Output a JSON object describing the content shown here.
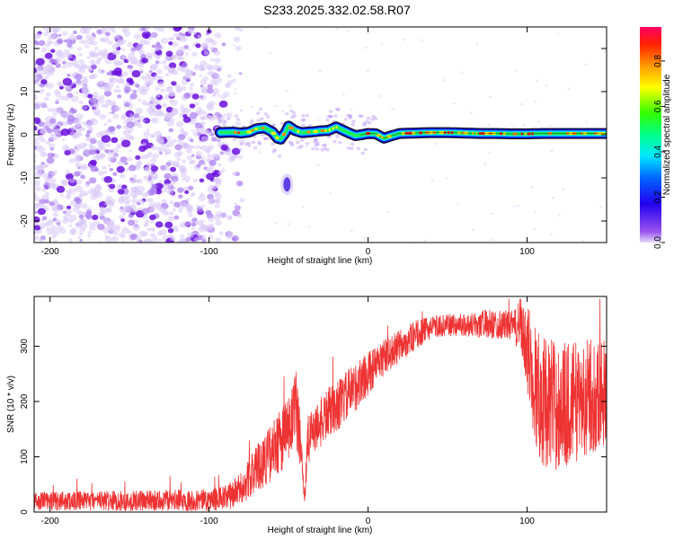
{
  "title": "S233.2025.332.02.58.R07",
  "colors": {
    "snr_line": "#ee3333",
    "ridge_outline": "#000000",
    "noise_light": "#d9c8f7",
    "noise_mid": "#a97cf0",
    "noise_dark": "#6a11dd"
  },
  "chart_data": [
    {
      "type": "heatmap",
      "name": "spectrogram",
      "xlabel": "Height of straight line (km)",
      "ylabel": "Frequency (Hz)",
      "xlim": [
        -210,
        150
      ],
      "ylim": [
        -25,
        25
      ],
      "xticks": [
        -200,
        -100,
        0,
        100
      ],
      "yticks": [
        -20,
        -10,
        0,
        10,
        20
      ],
      "ridge": {
        "x": [
          -93,
          -85,
          -80,
          -75,
          -70,
          -65,
          -60,
          -57,
          -55,
          -52,
          -50,
          -46,
          -42,
          -38,
          -34,
          -30,
          -25,
          -20,
          -16,
          -12,
          -8,
          -4,
          0,
          5,
          10,
          15,
          20,
          30,
          40,
          50,
          60,
          70,
          80,
          90,
          100,
          110,
          120,
          130,
          140,
          150
        ],
        "y": [
          0.5,
          0.6,
          0.4,
          0.6,
          1.4,
          1.6,
          0.6,
          -0.8,
          -1.0,
          0.5,
          2.0,
          1.0,
          0.5,
          0.6,
          0.7,
          0.9,
          1.0,
          1.8,
          1.1,
          0.4,
          -0.2,
          0.0,
          0.3,
          0.2,
          -0.8,
          -0.2,
          0.3,
          0.4,
          0.5,
          0.5,
          0.4,
          0.3,
          0.3,
          0.2,
          0.2,
          0.3,
          0.3,
          0.3,
          0.3,
          0.3
        ]
      },
      "outlier_patch": {
        "x": -51,
        "y": -11.5,
        "amplitude": 0.3
      },
      "noise_region_x": [
        -210,
        -85
      ],
      "colorbar": {
        "label": "Normalized spectral amplitude",
        "range": [
          0,
          0.95
        ],
        "ticks": [
          0.0,
          0.2,
          0.4,
          0.6,
          0.8
        ]
      }
    },
    {
      "type": "line",
      "name": "snr",
      "xlabel": "Height of straight line (km)",
      "ylabel": "SNR (10 * v/v)",
      "xlim": [
        -210,
        150
      ],
      "ylim": [
        0,
        390
      ],
      "xticks": [
        -200,
        -100,
        0,
        100
      ],
      "yticks": [
        0,
        100,
        200,
        300
      ],
      "series": [
        {
          "name": "SNR",
          "x": [
            -210,
            -150,
            -100,
            -90,
            -85,
            -80,
            -75,
            -70,
            -65,
            -60,
            -55,
            -50,
            -45,
            -42,
            -40,
            -38,
            -35,
            -30,
            -25,
            -20,
            -10,
            0,
            10,
            20,
            30,
            40,
            50,
            60,
            70,
            80,
            90,
            95,
            100,
            105,
            110,
            120,
            130,
            140,
            150
          ],
          "y": [
            20,
            20,
            22,
            25,
            32,
            42,
            60,
            80,
            95,
            110,
            130,
            150,
            180,
            120,
            20,
            120,
            150,
            160,
            180,
            190,
            220,
            250,
            280,
            300,
            320,
            335,
            338,
            338,
            340,
            340,
            338,
            330,
            300,
            230,
            200,
            190,
            200,
            210,
            220
          ],
          "spread": [
            25,
            28,
            30,
            35,
            40,
            45,
            55,
            65,
            75,
            80,
            90,
            100,
            120,
            60,
            20,
            80,
            70,
            70,
            70,
            70,
            70,
            60,
            50,
            45,
            40,
            30,
            30,
            30,
            40,
            40,
            40,
            60,
            120,
            180,
            180,
            180,
            170,
            160,
            150
          ]
        }
      ]
    }
  ]
}
